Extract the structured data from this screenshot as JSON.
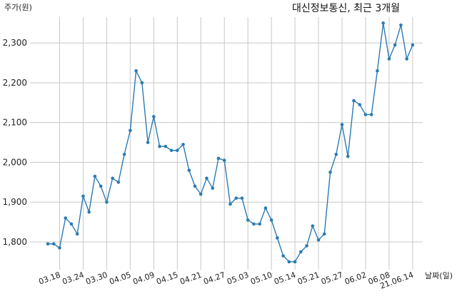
{
  "chart_data": {
    "type": "line",
    "title": "대신정보통신, 최근 3개월",
    "ylabel": "주가(원)",
    "xlabel": "날짜(일)",
    "ylim": [
      1730,
      2365
    ],
    "yticks": [
      1800,
      1900,
      2000,
      2100,
      2200,
      2300
    ],
    "ytick_labels": [
      "1,800",
      "1,900",
      "2,000",
      "2,100",
      "2,200",
      "2,300"
    ],
    "xticks": [
      {
        "label": "03.18",
        "i": 2
      },
      {
        "label": "03.24",
        "i": 6
      },
      {
        "label": "03.30",
        "i": 10
      },
      {
        "label": "04.05",
        "i": 14
      },
      {
        "label": "04.09",
        "i": 18
      },
      {
        "label": "04.15",
        "i": 22
      },
      {
        "label": "04.21",
        "i": 26
      },
      {
        "label": "04.27",
        "i": 30
      },
      {
        "label": "05.03",
        "i": 34
      },
      {
        "label": "05.10",
        "i": 38
      },
      {
        "label": "05.14",
        "i": 42
      },
      {
        "label": "05.21",
        "i": 46
      },
      {
        "label": "05.27",
        "i": 50
      },
      {
        "label": "06.02",
        "i": 54
      },
      {
        "label": "06.08",
        "i": 58
      },
      {
        "label": "21.06.14",
        "i": 62
      }
    ],
    "grid": true,
    "color": "#2b7bb3",
    "values": [
      1795,
      1795,
      1785,
      1860,
      1845,
      1820,
      1915,
      1875,
      1965,
      1940,
      1900,
      1960,
      1950,
      2020,
      2080,
      2230,
      2200,
      2050,
      2115,
      2040,
      2040,
      2030,
      2030,
      2045,
      1980,
      1940,
      1920,
      1960,
      1935,
      2010,
      2005,
      1895,
      1910,
      1910,
      1855,
      1845,
      1845,
      1885,
      1855,
      1810,
      1765,
      1750,
      1750,
      1775,
      1790,
      1840,
      1805,
      1820,
      1975,
      2020,
      2095,
      2015,
      2155,
      2145,
      2120,
      2120,
      2230,
      2350,
      2260,
      2295,
      2345,
      2260,
      2295
    ]
  }
}
